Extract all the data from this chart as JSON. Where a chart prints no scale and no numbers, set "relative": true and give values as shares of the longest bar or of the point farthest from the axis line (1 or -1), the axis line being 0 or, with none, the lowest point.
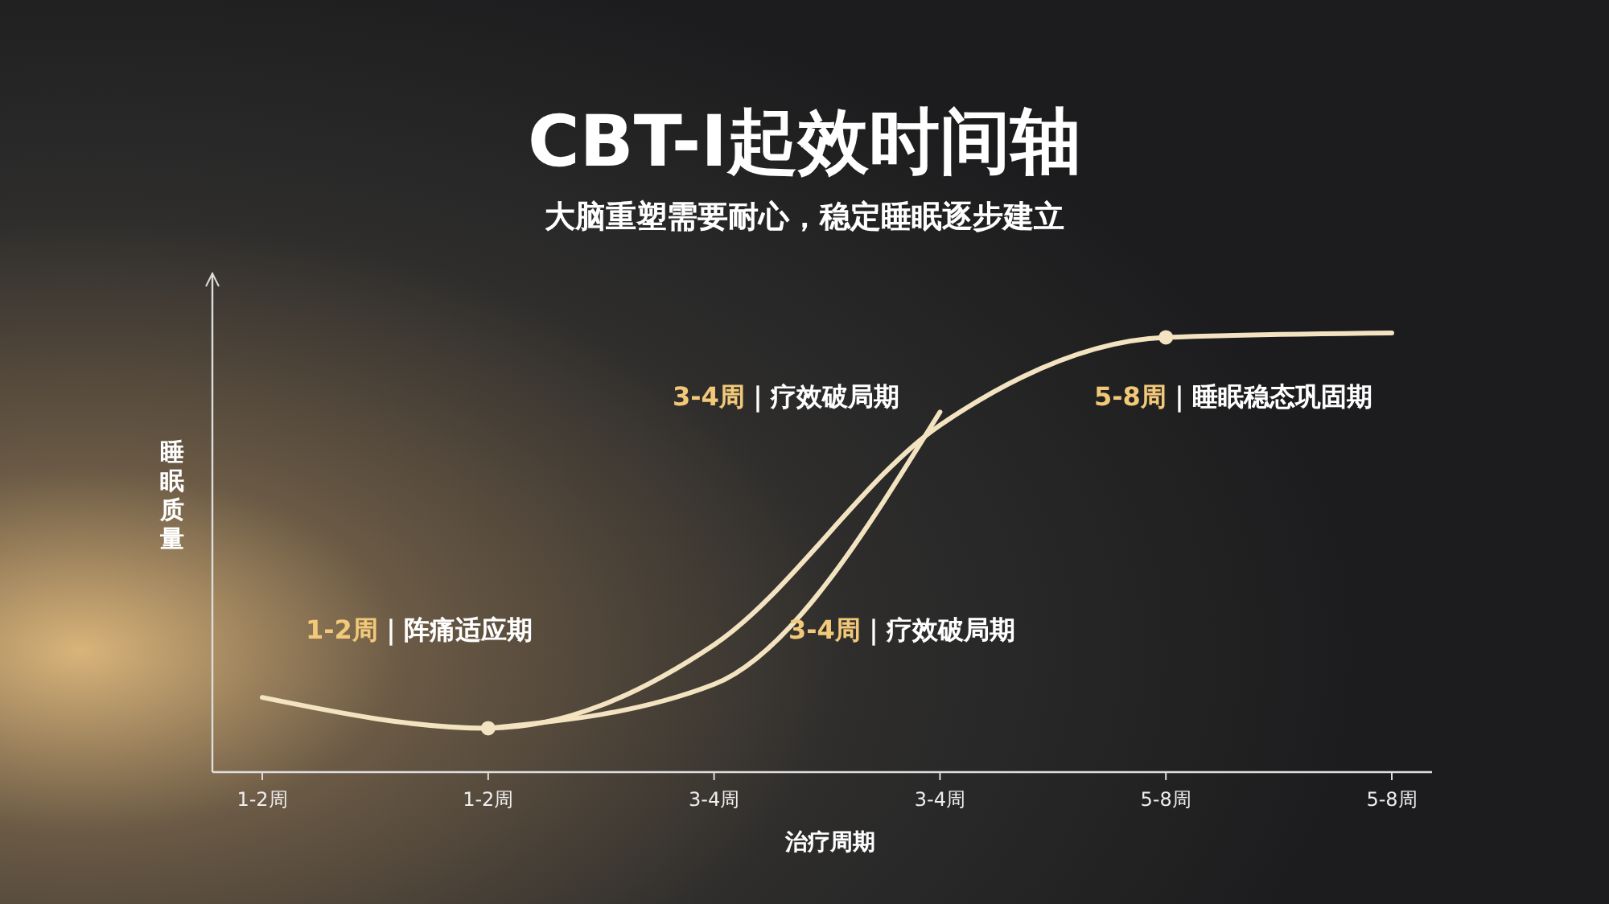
{
  "chart_data": {
    "type": "line",
    "title": "CBT-I起效时间轴",
    "subtitle": "大脑重塑需要耐心，稳定睡眠逐步建立",
    "xlabel": "治疗周期",
    "ylabel": "睡眠质量",
    "relative": true,
    "categories": [
      "1-2周",
      "1-2周",
      "3-4周",
      "3-4周",
      "5-8周",
      "5-8周"
    ],
    "series": [
      {
        "color": "#f3e3c0",
        "values": [
          0.17,
          0.1,
          0.29,
          0.79,
          0.99,
          1.0
        ]
      },
      {
        "color": "#f3e3c0",
        "values": [
          null,
          0.1,
          0.2,
          0.82,
          null,
          null
        ]
      },
      {
        "type": "scatter",
        "color": "#f3e3c0",
        "values": [
          null,
          0.1,
          null,
          null,
          0.99,
          null
        ]
      }
    ],
    "annotations": [
      "1-2周｜阵痛适应期",
      "3-4周｜疗效破局期",
      "3-4周｜疗效破局期",
      "5-8周｜睡眠稳态巩固期"
    ],
    "line_style": "solid",
    "grid": false
  }
}
